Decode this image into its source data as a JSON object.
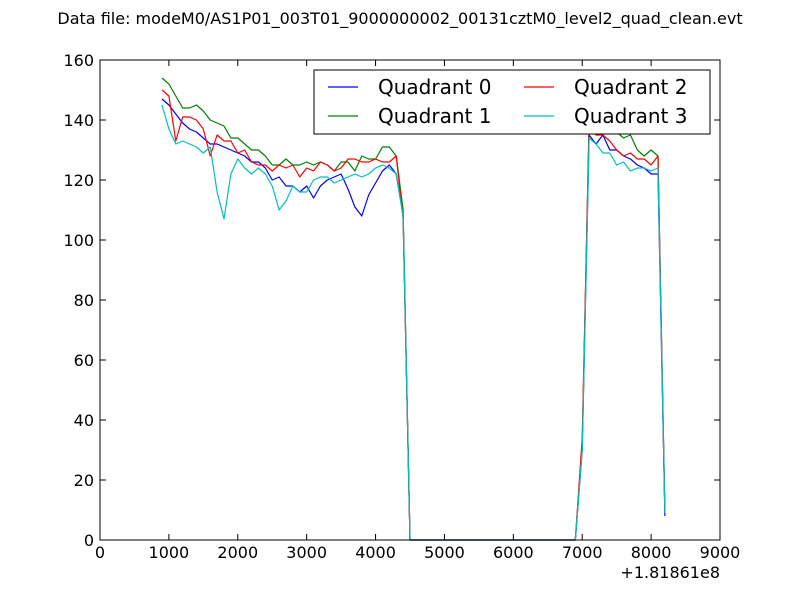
{
  "chart_data": {
    "type": "line",
    "title": "Data file: modeM0/AS1P01_003T01_9000000002_00131cztM0_level2_quad_clean.evt",
    "xlabel": "",
    "ylabel": "",
    "x_offset_text": "+1.81861e8",
    "xlim": [
      0,
      9000
    ],
    "ylim": [
      0,
      160
    ],
    "xticks": [
      0,
      1000,
      2000,
      3000,
      4000,
      5000,
      6000,
      7000,
      8000,
      9000
    ],
    "yticks": [
      0,
      20,
      40,
      60,
      80,
      100,
      120,
      140,
      160
    ],
    "grid": false,
    "legend_position": "top-right",
    "legend_columns": 2,
    "series": [
      {
        "name": "Quadrant 0",
        "color": "#0000ff",
        "x": [
          900,
          1000,
          1100,
          1200,
          1300,
          1400,
          1500,
          1600,
          1700,
          1800,
          1900,
          2000,
          2100,
          2200,
          2300,
          2400,
          2500,
          2600,
          2700,
          2800,
          2900,
          3000,
          3100,
          3200,
          3300,
          3400,
          3500,
          3600,
          3700,
          3800,
          3900,
          4000,
          4100,
          4200,
          4300,
          4400,
          4500,
          4600,
          5000,
          6000,
          6800,
          6900,
          7000,
          7100,
          7200,
          7300,
          7400,
          7500,
          7600,
          7700,
          7800,
          7900,
          8000,
          8100,
          8200
        ],
        "y": [
          147,
          145,
          142,
          139,
          137,
          136,
          134,
          132,
          132,
          131,
          130,
          129,
          128,
          126,
          126,
          124,
          120,
          121,
          118,
          118,
          116,
          118,
          114,
          118,
          120,
          121,
          122,
          117,
          111,
          108,
          115,
          119,
          123,
          125,
          122,
          108,
          0,
          0,
          0,
          0,
          0,
          0,
          30,
          135,
          132,
          135,
          130,
          130,
          128,
          127,
          125,
          124,
          122,
          122,
          8
        ]
      },
      {
        "name": "Quadrant 1",
        "color": "#008000",
        "x": [
          900,
          1000,
          1100,
          1200,
          1300,
          1400,
          1500,
          1600,
          1700,
          1800,
          1900,
          2000,
          2100,
          2200,
          2300,
          2400,
          2500,
          2600,
          2700,
          2800,
          2900,
          3000,
          3100,
          3200,
          3300,
          3400,
          3500,
          3600,
          3700,
          3800,
          3900,
          4000,
          4100,
          4200,
          4300,
          4400,
          4500,
          4600,
          5000,
          6000,
          6800,
          6900,
          7000,
          7100,
          7200,
          7300,
          7400,
          7500,
          7600,
          7700,
          7800,
          7900,
          8000,
          8100,
          8200
        ],
        "y": [
          154,
          152,
          148,
          144,
          144,
          145,
          143,
          140,
          139,
          138,
          134,
          134,
          132,
          130,
          130,
          128,
          125,
          125,
          127,
          125,
          125,
          126,
          125,
          126,
          125,
          123,
          126,
          126,
          123,
          128,
          127,
          127,
          131,
          131,
          128,
          110,
          0,
          0,
          0,
          0,
          0,
          0,
          32,
          140,
          139,
          138,
          137,
          136,
          134,
          135,
          130,
          128,
          130,
          128,
          9
        ]
      },
      {
        "name": "Quadrant 2",
        "color": "#ff0000",
        "x": [
          900,
          1000,
          1100,
          1200,
          1300,
          1400,
          1500,
          1600,
          1700,
          1800,
          1900,
          2000,
          2100,
          2200,
          2300,
          2400,
          2500,
          2600,
          2700,
          2800,
          2900,
          3000,
          3100,
          3200,
          3300,
          3400,
          3500,
          3600,
          3700,
          3800,
          3900,
          4000,
          4100,
          4200,
          4300,
          4400,
          4500,
          4600,
          5000,
          6000,
          6800,
          6900,
          7000,
          7100,
          7200,
          7300,
          7400,
          7500,
          7600,
          7700,
          7800,
          7900,
          8000,
          8100,
          8200
        ],
        "y": [
          150,
          148,
          133,
          141,
          141,
          140,
          137,
          128,
          135,
          133,
          133,
          129,
          130,
          126,
          125,
          125,
          123,
          125,
          124,
          125,
          121,
          124,
          123,
          126,
          125,
          123,
          124,
          127,
          127,
          126,
          126,
          127,
          126,
          126,
          128,
          107,
          0,
          0,
          0,
          0,
          0,
          0,
          34,
          138,
          135,
          135,
          133,
          130,
          128,
          129,
          127,
          127,
          125,
          128,
          9
        ]
      },
      {
        "name": "Quadrant 3",
        "color": "#00bfbf",
        "x": [
          900,
          1000,
          1100,
          1200,
          1300,
          1400,
          1500,
          1600,
          1700,
          1800,
          1900,
          2000,
          2100,
          2200,
          2300,
          2400,
          2500,
          2600,
          2700,
          2800,
          2900,
          3000,
          3100,
          3200,
          3300,
          3400,
          3500,
          3600,
          3700,
          3800,
          3900,
          4000,
          4100,
          4200,
          4300,
          4400,
          4500,
          4600,
          5000,
          6000,
          6800,
          6900,
          7000,
          7100,
          7200,
          7300,
          7400,
          7500,
          7600,
          7700,
          7800,
          7900,
          8000,
          8100,
          8200
        ],
        "y": [
          145,
          137,
          132,
          133,
          132,
          131,
          129,
          131,
          116,
          107,
          122,
          127,
          124,
          122,
          124,
          122,
          118,
          110,
          113,
          118,
          116,
          116,
          120,
          121,
          121,
          119,
          120,
          121,
          122,
          121,
          122,
          124,
          125,
          124,
          122,
          108,
          0,
          0,
          0,
          0,
          0,
          0,
          30,
          134,
          132,
          129,
          129,
          125,
          126,
          123,
          124,
          124,
          123,
          124,
          9
        ]
      }
    ]
  }
}
